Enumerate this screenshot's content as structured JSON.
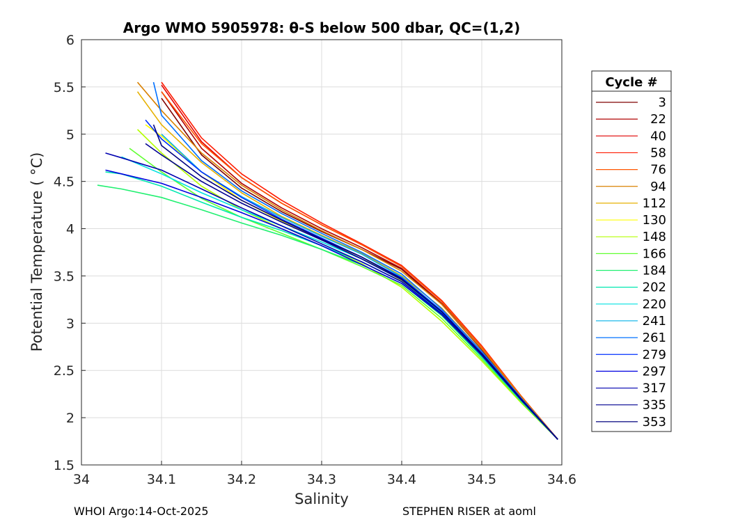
{
  "chart_data": {
    "type": "line",
    "title": "Argo WMO 5905978: θ-S below 500 dbar,  QC=(1,2)",
    "xlabel": "Salinity",
    "ylabel": "Potential Temperature ( °C)",
    "xlim": [
      34.0,
      34.6
    ],
    "ylim": [
      1.5,
      6.0
    ],
    "xticks": [
      34.0,
      34.1,
      34.2,
      34.3,
      34.4,
      34.5,
      34.6
    ],
    "xtick_labels": [
      "34",
      "34.1",
      "34.2",
      "34.3",
      "34.4",
      "34.5",
      "34.6"
    ],
    "yticks": [
      1.5,
      2.0,
      2.5,
      3.0,
      3.5,
      4.0,
      4.5,
      5.0,
      5.5,
      6.0
    ],
    "ytick_labels": [
      "1.5",
      "2",
      "2.5",
      "3",
      "3.5",
      "4",
      "4.5",
      "5",
      "5.5",
      "6"
    ],
    "grid": true,
    "legend_title": "Cycle #",
    "legend_position": "outside-right",
    "series": [
      {
        "name": "3",
        "color": "#7f0000",
        "salinity": [
          34.595,
          34.55,
          34.5,
          34.45,
          34.4,
          34.35,
          34.3,
          34.25,
          34.2,
          34.15,
          34.1
        ],
        "theta": [
          1.77,
          2.2,
          2.72,
          3.2,
          3.57,
          3.78,
          3.97,
          4.18,
          4.43,
          4.78,
          5.38
        ]
      },
      {
        "name": "22",
        "color": "#b00000",
        "salinity": [
          34.595,
          34.55,
          34.5,
          34.45,
          34.4,
          34.35,
          34.3,
          34.25,
          34.2,
          34.15,
          34.1
        ],
        "theta": [
          1.77,
          2.21,
          2.73,
          3.21,
          3.58,
          3.8,
          4.0,
          4.22,
          4.48,
          4.85,
          5.45
        ]
      },
      {
        "name": "40",
        "color": "#e00000",
        "salinity": [
          34.595,
          34.55,
          34.5,
          34.45,
          34.4,
          34.35,
          34.3,
          34.25,
          34.2,
          34.15,
          34.1
        ],
        "theta": [
          1.77,
          2.22,
          2.75,
          3.23,
          3.6,
          3.83,
          4.04,
          4.27,
          4.54,
          4.92,
          5.52
        ]
      },
      {
        "name": "58",
        "color": "#ff1a00",
        "salinity": [
          34.595,
          34.55,
          34.5,
          34.45,
          34.4,
          34.35,
          34.3,
          34.25,
          34.2,
          34.15,
          34.1
        ],
        "theta": [
          1.77,
          2.22,
          2.76,
          3.24,
          3.61,
          3.84,
          4.06,
          4.3,
          4.58,
          4.96,
          5.55
        ]
      },
      {
        "name": "76",
        "color": "#ff5500",
        "salinity": [
          34.595,
          34.55,
          34.5,
          34.45,
          34.4,
          34.35,
          34.3,
          34.25,
          34.2,
          34.15,
          34.1
        ],
        "theta": [
          1.77,
          2.22,
          2.75,
          3.23,
          3.6,
          3.83,
          4.04,
          4.27,
          4.54,
          4.9,
          5.45
        ]
      },
      {
        "name": "94",
        "color": "#d98000",
        "salinity": [
          34.595,
          34.55,
          34.5,
          34.45,
          34.4,
          34.35,
          34.3,
          34.25,
          34.2,
          34.15,
          34.1,
          34.07
        ],
        "theta": [
          1.77,
          2.21,
          2.73,
          3.2,
          3.55,
          3.78,
          3.98,
          4.2,
          4.46,
          4.8,
          5.25,
          5.55
        ]
      },
      {
        "name": "112",
        "color": "#e6b000",
        "salinity": [
          34.595,
          34.55,
          34.5,
          34.45,
          34.4,
          34.35,
          34.3,
          34.25,
          34.2,
          34.15,
          34.1,
          34.07
        ],
        "theta": [
          1.77,
          2.2,
          2.7,
          3.16,
          3.5,
          3.74,
          3.93,
          4.13,
          4.38,
          4.7,
          5.1,
          5.45
        ]
      },
      {
        "name": "130",
        "color": "#ffff00",
        "salinity": [
          34.595,
          34.55,
          34.5,
          34.45,
          34.4,
          34.35,
          34.3,
          34.25,
          34.2,
          34.15,
          34.1,
          34.08
        ],
        "theta": [
          1.77,
          2.18,
          2.66,
          3.1,
          3.45,
          3.7,
          3.88,
          4.08,
          4.3,
          4.6,
          4.98,
          5.1
        ]
      },
      {
        "name": "148",
        "color": "#b4ff00",
        "salinity": [
          34.595,
          34.55,
          34.5,
          34.45,
          34.4,
          34.35,
          34.3,
          34.25,
          34.2,
          34.15,
          34.1,
          34.07
        ],
        "theta": [
          1.77,
          2.15,
          2.6,
          3.02,
          3.38,
          3.63,
          3.82,
          4.0,
          4.2,
          4.45,
          4.8,
          5.05
        ]
      },
      {
        "name": "166",
        "color": "#60ff30",
        "salinity": [
          34.595,
          34.55,
          34.5,
          34.45,
          34.4,
          34.35,
          34.3,
          34.25,
          34.2,
          34.15,
          34.1,
          34.06
        ],
        "theta": [
          1.77,
          2.16,
          2.62,
          3.05,
          3.4,
          3.6,
          3.78,
          3.95,
          4.12,
          4.32,
          4.6,
          4.85
        ]
      },
      {
        "name": "184",
        "color": "#20f070",
        "salinity": [
          34.595,
          34.55,
          34.5,
          34.45,
          34.4,
          34.35,
          34.3,
          34.25,
          34.2,
          34.15,
          34.1,
          34.05,
          34.02
        ],
        "theta": [
          1.77,
          2.17,
          2.64,
          3.08,
          3.42,
          3.62,
          3.78,
          3.93,
          4.06,
          4.2,
          4.33,
          4.42,
          4.46
        ]
      },
      {
        "name": "202",
        "color": "#00e8b0",
        "salinity": [
          34.595,
          34.55,
          34.5,
          34.45,
          34.4,
          34.35,
          34.3,
          34.25,
          34.2,
          34.15,
          34.1,
          34.05,
          34.03
        ],
        "theta": [
          1.77,
          2.17,
          2.65,
          3.1,
          3.44,
          3.65,
          3.82,
          3.98,
          4.12,
          4.28,
          4.45,
          4.58,
          4.6
        ]
      },
      {
        "name": "220",
        "color": "#00e0e0",
        "salinity": [
          34.595,
          34.55,
          34.5,
          34.45,
          34.4,
          34.35,
          34.3,
          34.25,
          34.2,
          34.15,
          34.1,
          34.05
        ],
        "theta": [
          1.77,
          2.18,
          2.66,
          3.11,
          3.46,
          3.68,
          3.86,
          4.03,
          4.2,
          4.38,
          4.58,
          4.76
        ]
      },
      {
        "name": "241",
        "color": "#00b0e8",
        "salinity": [
          34.595,
          34.55,
          34.5,
          34.45,
          34.4,
          34.35,
          34.3,
          34.25,
          34.2,
          34.15,
          34.1
        ],
        "theta": [
          1.77,
          2.19,
          2.68,
          3.13,
          3.49,
          3.73,
          3.92,
          4.12,
          4.34,
          4.6,
          5.0
        ]
      },
      {
        "name": "261",
        "color": "#0070ff",
        "salinity": [
          34.595,
          34.55,
          34.5,
          34.45,
          34.4,
          34.35,
          34.3,
          34.25,
          34.2,
          34.15,
          34.1,
          34.09
        ],
        "theta": [
          1.77,
          2.2,
          2.7,
          3.15,
          3.52,
          3.75,
          3.95,
          4.16,
          4.4,
          4.72,
          5.2,
          5.55
        ]
      },
      {
        "name": "279",
        "color": "#0030ff",
        "salinity": [
          34.595,
          34.55,
          34.5,
          34.45,
          34.4,
          34.35,
          34.3,
          34.25,
          34.2,
          34.15,
          34.1,
          34.08
        ],
        "theta": [
          1.77,
          2.19,
          2.68,
          3.13,
          3.48,
          3.7,
          3.9,
          4.1,
          4.33,
          4.6,
          4.95,
          5.15
        ]
      },
      {
        "name": "297",
        "color": "#0000e0",
        "salinity": [
          34.595,
          34.55,
          34.5,
          34.45,
          34.4,
          34.35,
          34.3,
          34.25,
          34.2,
          34.15,
          34.1,
          34.05,
          34.03
        ],
        "theta": [
          1.77,
          2.18,
          2.66,
          3.09,
          3.42,
          3.62,
          3.82,
          4.0,
          4.17,
          4.33,
          4.48,
          4.58,
          4.62
        ]
      },
      {
        "name": "317",
        "color": "#0000b0",
        "salinity": [
          34.595,
          34.55,
          34.5,
          34.45,
          34.4,
          34.35,
          34.3,
          34.25,
          34.2,
          34.15,
          34.1,
          34.05,
          34.03
        ],
        "theta": [
          1.77,
          2.18,
          2.66,
          3.1,
          3.44,
          3.65,
          3.84,
          4.03,
          4.22,
          4.42,
          4.62,
          4.75,
          4.8
        ]
      },
      {
        "name": "335",
        "color": "#000090",
        "salinity": [
          34.595,
          34.55,
          34.5,
          34.45,
          34.4,
          34.35,
          34.3,
          34.25,
          34.2,
          34.15,
          34.1,
          34.08
        ],
        "theta": [
          1.77,
          2.19,
          2.67,
          3.12,
          3.46,
          3.68,
          3.88,
          4.07,
          4.27,
          4.5,
          4.78,
          4.9
        ]
      },
      {
        "name": "353",
        "color": "#00007f",
        "salinity": [
          34.595,
          34.55,
          34.5,
          34.45,
          34.4,
          34.35,
          34.3,
          34.25,
          34.2,
          34.15,
          34.1,
          34.09
        ],
        "theta": [
          1.77,
          2.19,
          2.68,
          3.12,
          3.47,
          3.7,
          3.89,
          4.09,
          4.3,
          4.55,
          4.88,
          5.1
        ]
      }
    ]
  },
  "footer": {
    "left": "WHOI Argo:14-Oct-2025",
    "right": "STEPHEN RISER at aoml"
  }
}
